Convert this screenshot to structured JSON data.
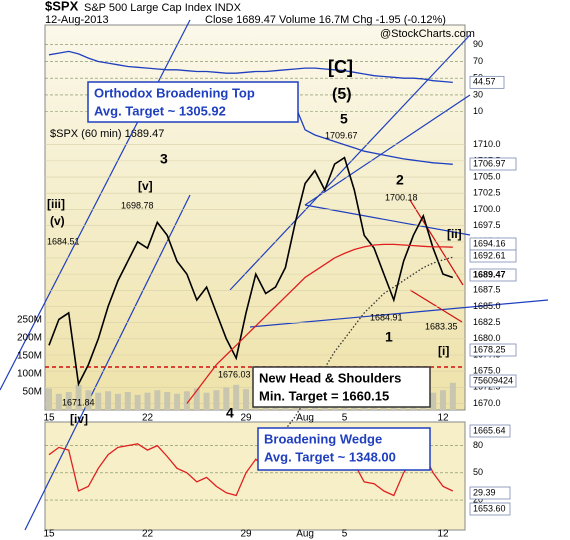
{
  "header": {
    "symbol": "$SPX",
    "name": "S&P 500 Large Cap Index INDX",
    "date": "12-Aug-2013",
    "quote": "Close 1689.47  Volume 16.7M  Chg -1.95 (-0.12%)",
    "source": "@StockCharts.com",
    "legend": "$SPX (60 min) 1689.47"
  },
  "chart_data": [
    {
      "type": "line",
      "name": "indicator",
      "color": "#1f3fbf",
      "ylim": [
        0,
        110
      ],
      "yticks": [
        90,
        70,
        50,
        30,
        10
      ],
      "last_label": "44.57",
      "values": [
        78,
        80,
        82,
        79,
        74,
        70,
        68,
        66,
        64,
        63,
        62,
        61,
        60,
        60,
        59,
        58,
        58,
        57,
        56,
        56,
        57,
        58,
        58,
        59,
        60,
        61,
        62,
        62,
        61,
        60,
        59,
        57,
        55,
        53,
        52,
        51,
        50,
        50,
        49,
        47,
        46,
        45
      ]
    },
    {
      "type": "line",
      "name": "price",
      "ylim": [
        1669,
        1728.5
      ],
      "yticks": [
        {
          "value": 1710,
          "label": "1710.0"
        },
        {
          "value": 1707.5,
          "label": "1707.5"
        },
        {
          "value": 1705,
          "label": "1705.0"
        },
        {
          "value": 1702.5,
          "label": "1702.5"
        },
        {
          "value": 1700,
          "label": "1700.0"
        },
        {
          "value": 1697.5,
          "label": "1697.5"
        },
        {
          "value": 1695,
          "label": "1695.0"
        },
        {
          "value": 1692.5,
          "label": "1692.5"
        },
        {
          "value": 1690,
          "label": "1690.0"
        },
        {
          "value": 1687.5,
          "label": "1687.5"
        },
        {
          "value": 1685,
          "label": "1685.0"
        },
        {
          "value": 1682.5,
          "label": "1682.5"
        },
        {
          "value": 1680,
          "label": "1680.0"
        },
        {
          "value": 1677.5,
          "label": "1677.5"
        },
        {
          "value": 1675,
          "label": "1675.0"
        },
        {
          "value": 1672.5,
          "label": "1672.5"
        },
        {
          "value": 1670,
          "label": "1670.0"
        }
      ],
      "categories": [
        "15",
        null,
        null,
        null,
        null,
        null,
        null,
        null,
        null,
        null,
        "22",
        null,
        null,
        null,
        null,
        null,
        null,
        null,
        null,
        null,
        "29",
        null,
        null,
        null,
        null,
        null,
        "Aug",
        null,
        null,
        null,
        "5",
        null,
        null,
        null,
        null,
        null,
        null,
        null,
        null,
        null,
        "12",
        null
      ],
      "series": [
        {
          "name": "$SPX",
          "color": "#000000",
          "values": [
            1679,
            1683,
            1684,
            1673,
            1676,
            1680,
            1685,
            1689,
            1692,
            1695,
            1694,
            1698,
            1696,
            1692,
            1690,
            1686,
            1688,
            1684,
            1680,
            1677,
            1684,
            1690,
            1687,
            1688,
            1691,
            1698,
            1704,
            1706,
            1703,
            1707,
            1708,
            1703,
            1696,
            1694,
            1690,
            1686,
            1692,
            1696,
            1699,
            1694,
            1690,
            1689.47
          ]
        },
        {
          "name": "MA red",
          "color": "#e02020",
          "values": [
            null,
            null,
            null,
            null,
            null,
            null,
            null,
            null,
            null,
            null,
            null,
            null,
            null,
            null,
            1670,
            1672,
            1674,
            1676,
            1677.5,
            1679,
            1680.5,
            1682,
            1683.5,
            1685,
            1686.5,
            1688,
            1689.5,
            1690.5,
            1691.5,
            1692.5,
            1693.2,
            1693.8,
            1694.2,
            1694.5,
            1694.6,
            1694.6,
            1694.5,
            1694.4,
            1694.3,
            1694.2,
            1694.2,
            1694.16
          ]
        },
        {
          "name": "MA dotted",
          "color": "#333333",
          "values": [
            null,
            null,
            null,
            null,
            null,
            null,
            null,
            null,
            null,
            null,
            null,
            null,
            null,
            null,
            null,
            null,
            null,
            null,
            null,
            null,
            null,
            null,
            null,
            null,
            1666,
            1668,
            1670.5,
            1673,
            1675.5,
            1678,
            1680,
            1682,
            1684,
            1685.5,
            1687,
            1688,
            1689,
            1690,
            1691,
            1691.7,
            1692.2,
            1692.61
          ]
        },
        {
          "name": "MA blue",
          "color": "#1f3fbf",
          "values": [
            null,
            null,
            null,
            null,
            null,
            null,
            null,
            null,
            null,
            null,
            null,
            null,
            null,
            null,
            null,
            null,
            null,
            null,
            null,
            null,
            null,
            null,
            null,
            null,
            null,
            1716,
            1712.3,
            1711.5,
            1711,
            1710.5,
            1710,
            1709.5,
            1709,
            1708.7,
            1708.4,
            1708.1,
            1707.8,
            1707.6,
            1707.4,
            1707.2,
            1707.1,
            1706.97
          ]
        }
      ],
      "volume": {
        "color": "#c9c6b0",
        "ylim": [
          0,
          1070000000
        ],
        "yticks": [
          {
            "value": 250000000,
            "label": "250M"
          },
          {
            "value": 200000000,
            "label": "200M"
          },
          {
            "value": 150000000,
            "label": "150M"
          },
          {
            "value": 100000000,
            "label": "100M"
          },
          {
            "value": 50000000,
            "label": "50M"
          }
        ],
        "values": [
          60000000,
          45000000,
          50000000,
          70000000,
          55000000,
          48000000,
          52000000,
          45000000,
          50000000,
          42000000,
          48000000,
          55000000,
          50000000,
          45000000,
          52000000,
          60000000,
          48000000,
          55000000,
          62000000,
          70000000,
          58000000,
          50000000,
          45000000,
          52000000,
          60000000,
          65000000,
          70000000,
          55000000,
          48000000,
          52000000,
          45000000,
          50000000,
          58000000,
          55000000,
          48000000,
          60000000,
          52000000,
          45000000,
          50000000,
          48000000,
          55000000,
          75609424
        ]
      },
      "last_labels": [
        "1706.97",
        "1694.16",
        "1692.61",
        "1689.47",
        "1678.25",
        "75609424"
      ],
      "annotations": [
        "[iii]",
        "(v)",
        "1684.51",
        "1671.84",
        "[iv]",
        "3",
        "[v]",
        "1698.78",
        "1676.03",
        "4",
        "5",
        "1709.67",
        "2",
        "1700.18",
        "[ii]",
        "1684.91",
        "1683.35",
        "1",
        "[i]",
        "[C]",
        "(5)"
      ],
      "boxes": [
        [
          "Orthodox Broadening Top",
          "Avg. Target ~ 1305.92"
        ],
        [
          "New Head & Shoulders",
          "Min. Target = 1660.15"
        ]
      ]
    },
    {
      "type": "line",
      "name": "rsi",
      "color": "#e02020",
      "ylim": [
        -13,
        106
      ],
      "yticks": [
        80,
        50,
        20
      ],
      "last_labels": [
        "1665.64",
        "29.39",
        "1653.60"
      ],
      "box": [
        "Broadening Wedge",
        "Avg. Target ~ 1348.00"
      ],
      "values": [
        70,
        78,
        75,
        30,
        35,
        55,
        70,
        78,
        80,
        82,
        75,
        80,
        68,
        55,
        50,
        40,
        45,
        35,
        28,
        25,
        50,
        65,
        55,
        60,
        70,
        78,
        80,
        82,
        70,
        78,
        75,
        60,
        40,
        38,
        30,
        25,
        50,
        65,
        72,
        50,
        35,
        30
      ]
    }
  ]
}
